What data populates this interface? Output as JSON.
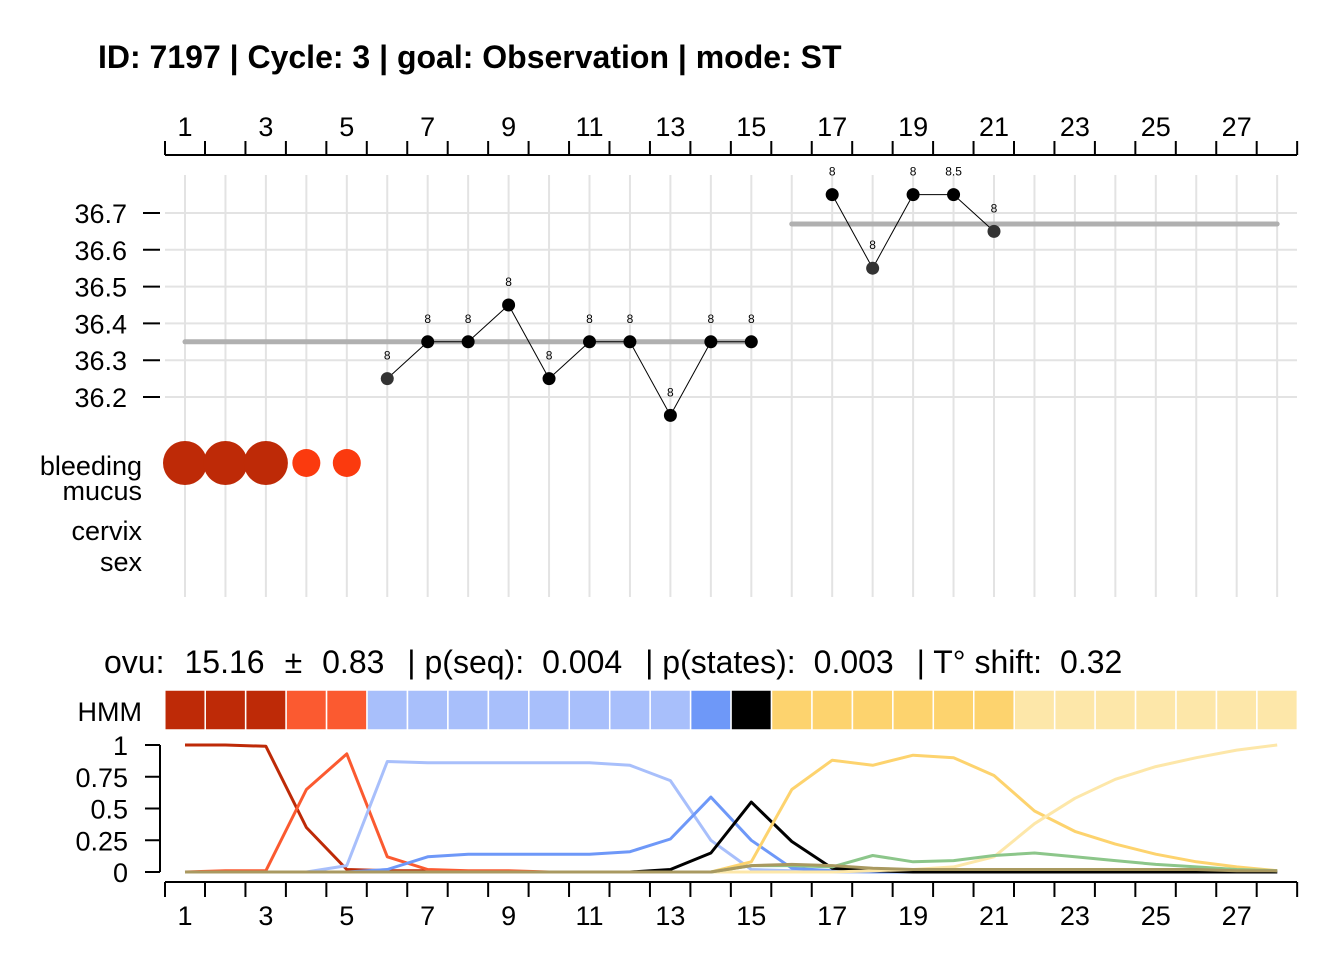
{
  "title": "ID: 7197 | Cycle: 3 | goal: Observation  |  mode: ST",
  "colors": {
    "bleeding_heavy": "#be2a07",
    "bleeding_light": "#fb3a0e",
    "grid": "#e3e3e3",
    "baseline": "#b0b0b0"
  },
  "chart_data": [
    {
      "type": "line",
      "name": "temperature",
      "x_ticks": [
        1,
        3,
        5,
        7,
        9,
        11,
        13,
        15,
        17,
        19,
        21,
        23,
        25,
        27
      ],
      "xlim": [
        1,
        28
      ],
      "y_ticks": [
        36.2,
        36.3,
        36.4,
        36.5,
        36.6,
        36.7
      ],
      "ylim": [
        36.15,
        36.75
      ],
      "points": [
        {
          "day": 6,
          "temp": 36.25,
          "label": "8"
        },
        {
          "day": 7,
          "temp": 36.35,
          "label": "8"
        },
        {
          "day": 8,
          "temp": 36.35,
          "label": "8"
        },
        {
          "day": 9,
          "temp": 36.45,
          "label": "8"
        },
        {
          "day": 10,
          "temp": 36.25,
          "label": "8"
        },
        {
          "day": 11,
          "temp": 36.35,
          "label": "8"
        },
        {
          "day": 12,
          "temp": 36.35,
          "label": "8"
        },
        {
          "day": 13,
          "temp": 36.15,
          "label": "8"
        },
        {
          "day": 14,
          "temp": 36.35,
          "label": "8"
        },
        {
          "day": 15,
          "temp": 36.35,
          "label": "8"
        },
        {
          "day": 17,
          "temp": 36.75,
          "label": "8"
        },
        {
          "day": 18,
          "temp": 36.55,
          "label": "8"
        },
        {
          "day": 19,
          "temp": 36.75,
          "label": "8"
        },
        {
          "day": 20,
          "temp": 36.75,
          "label": "8.5"
        },
        {
          "day": 21,
          "temp": 36.65,
          "label": "8"
        }
      ],
      "baselines": [
        {
          "from": 1,
          "to": 15,
          "temp": 36.35
        },
        {
          "from": 16,
          "to": 28,
          "temp": 36.67
        }
      ],
      "row_labels": [
        "bleeding",
        "mucus",
        "cervix",
        "sex"
      ],
      "bleeding": [
        {
          "day": 1,
          "level": "heavy"
        },
        {
          "day": 2,
          "level": "heavy"
        },
        {
          "day": 3,
          "level": "heavy"
        },
        {
          "day": 4,
          "level": "light"
        },
        {
          "day": 5,
          "level": "light"
        }
      ]
    },
    {
      "type": "heatmap",
      "name": "HMM",
      "label": "HMM",
      "stats": {
        "ovu_label": "ovu:",
        "ovu": "15.16",
        "pm": "±",
        "ovu_sd": "0.83",
        "pseq_label": " | p(seq):",
        "pseq": "0.004",
        "pstates_label": " | p(states):",
        "pstates": "0.003",
        "tshift_label": " | T° shift:",
        "tshift": "0.32"
      },
      "states_by_day": [
        "#be2a07",
        "#be2a07",
        "#be2a07",
        "#fb5a30",
        "#fb5a30",
        "#a8bffb",
        "#a8bffb",
        "#a8bffb",
        "#a8bffb",
        "#a8bffb",
        "#a8bffb",
        "#a8bffb",
        "#a8bffb",
        "#6e98f8",
        "#000000",
        "#fdd36e",
        "#fdd36e",
        "#fdd36e",
        "#fdd36e",
        "#fdd36e",
        "#fdd36e",
        "#fde7a9",
        "#fde7a9",
        "#fde7a9",
        "#fde7a9",
        "#fde7a9",
        "#fde7a9",
        "#fde7a9"
      ]
    },
    {
      "type": "line",
      "name": "state probabilities",
      "y_ticks": [
        "0",
        "0.25",
        "0.5",
        "0.75",
        "1"
      ],
      "ylim": [
        0,
        1
      ],
      "x_ticks": [
        1,
        3,
        5,
        7,
        9,
        11,
        13,
        15,
        17,
        19,
        21,
        23,
        25,
        27
      ],
      "series": [
        {
          "color": "#be2a07",
          "values": [
            1,
            1,
            0.99,
            0.35,
            0.02,
            0.01,
            0.01,
            0,
            0,
            0,
            0,
            0,
            0,
            0,
            0,
            0,
            0,
            0,
            0,
            0,
            0,
            0,
            0,
            0,
            0,
            0,
            0,
            0
          ]
        },
        {
          "color": "#fb5a30",
          "values": [
            0,
            0.01,
            0.01,
            0.65,
            0.93,
            0.12,
            0.02,
            0.01,
            0.01,
            0,
            0,
            0,
            0,
            0,
            0,
            0,
            0,
            0,
            0,
            0,
            0,
            0,
            0,
            0,
            0,
            0,
            0,
            0
          ]
        },
        {
          "color": "#a8bffb",
          "values": [
            0,
            0,
            0,
            0,
            0.05,
            0.87,
            0.86,
            0.86,
            0.86,
            0.86,
            0.86,
            0.84,
            0.72,
            0.25,
            0.02,
            0.01,
            0,
            0,
            0,
            0,
            0,
            0,
            0,
            0,
            0,
            0,
            0,
            0
          ]
        },
        {
          "color": "#6e98f8",
          "values": [
            0,
            0,
            0,
            0,
            0,
            0.02,
            0.12,
            0.14,
            0.14,
            0.14,
            0.14,
            0.16,
            0.26,
            0.59,
            0.25,
            0.03,
            0.01,
            0,
            0,
            0,
            0,
            0,
            0,
            0,
            0,
            0,
            0,
            0
          ]
        },
        {
          "color": "#000000",
          "values": [
            0,
            0,
            0,
            0,
            0,
            0,
            0,
            0,
            0,
            0,
            0,
            0,
            0.02,
            0.15,
            0.55,
            0.24,
            0.03,
            0.01,
            0,
            0,
            0,
            0,
            0,
            0,
            0,
            0,
            0,
            0
          ]
        },
        {
          "color": "#fdd36e",
          "values": [
            0,
            0,
            0,
            0,
            0,
            0,
            0,
            0,
            0,
            0,
            0,
            0,
            0,
            0,
            0.08,
            0.65,
            0.88,
            0.84,
            0.92,
            0.9,
            0.76,
            0.48,
            0.32,
            0.22,
            0.14,
            0.08,
            0.04,
            0.01
          ]
        },
        {
          "color": "#fde7a9",
          "values": [
            0,
            0,
            0,
            0,
            0,
            0,
            0,
            0,
            0,
            0,
            0,
            0,
            0,
            0,
            0,
            0,
            0,
            0.01,
            0.02,
            0.04,
            0.12,
            0.38,
            0.58,
            0.73,
            0.83,
            0.9,
            0.96,
            1
          ]
        },
        {
          "color": "#8cc68a",
          "values": [
            0,
            0,
            0,
            0,
            0,
            0,
            0,
            0,
            0,
            0,
            0,
            0,
            0,
            0,
            0.05,
            0.05,
            0.04,
            0.13,
            0.08,
            0.09,
            0.13,
            0.15,
            0.12,
            0.09,
            0.06,
            0.04,
            0.02,
            0.01
          ]
        },
        {
          "color": "#a99960",
          "values": [
            0,
            0,
            0,
            0,
            0,
            0,
            0,
            0,
            0,
            0,
            0,
            0,
            0,
            0,
            0.05,
            0.06,
            0.05,
            0.03,
            0.02,
            0.02,
            0.02,
            0.02,
            0.02,
            0.02,
            0.02,
            0.02,
            0.01,
            0.01
          ]
        }
      ]
    }
  ]
}
